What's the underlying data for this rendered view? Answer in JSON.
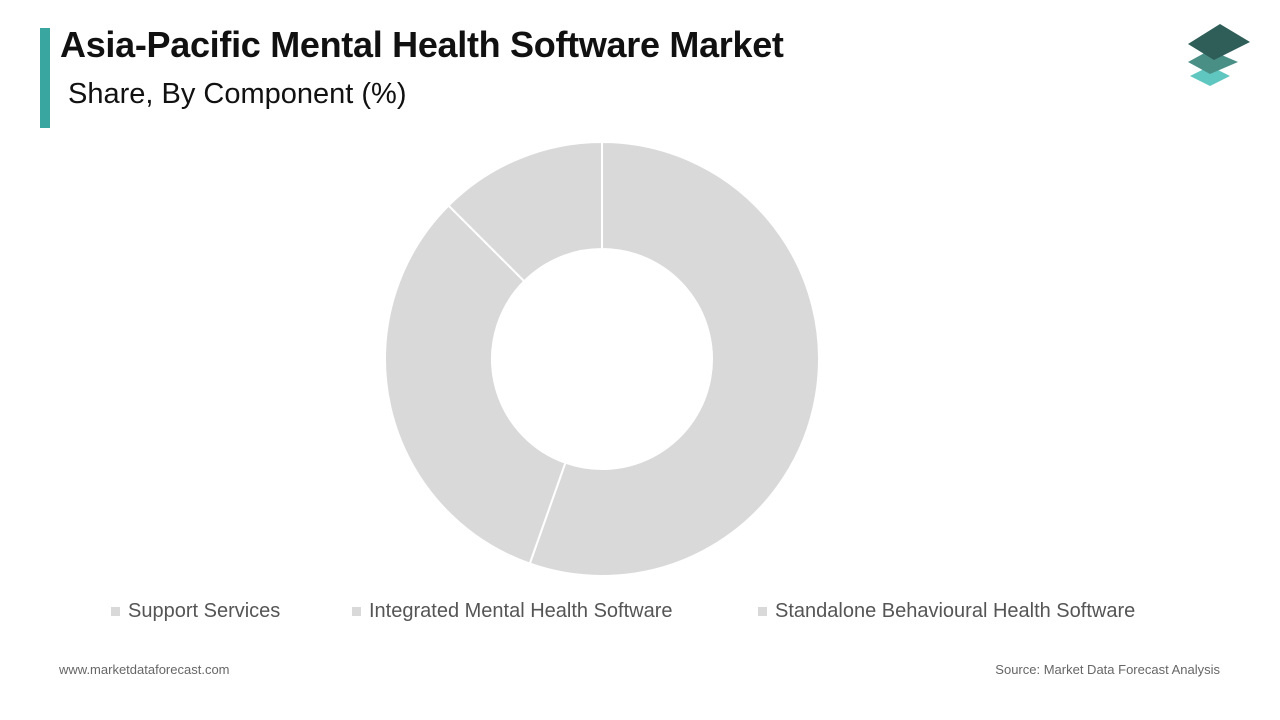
{
  "header": {
    "title": "Asia-Pacific Mental Health Software Market",
    "subtitle": "Share, By Component (%)",
    "accent_color": "#3aa6a0"
  },
  "logo": {
    "icon": "stacked-layers-logo-icon",
    "colors": [
      "#2e5e57",
      "#4a8f86",
      "#5fc7c0"
    ]
  },
  "chart_data": {
    "type": "pie",
    "donut": true,
    "title": "Share, By Component (%)",
    "start_angle_deg": 0,
    "direction": "clockwise",
    "segment_color": "#d9d9d9",
    "separator_color": "#ffffff",
    "categories": [
      "Standalone Behavioural Health Software",
      "Integrated Mental Health Software",
      "Support Services"
    ],
    "values": [
      55.4,
      32.1,
      12.5
    ],
    "legend_order": [
      "Support Services",
      "Integrated Mental Health Software",
      "Standalone Behavioural Health Software"
    ],
    "legend_placement": "bottom"
  },
  "footer": {
    "website": "www.marketdataforecast.com",
    "source": "Source: Market Data Forecast Analysis"
  }
}
